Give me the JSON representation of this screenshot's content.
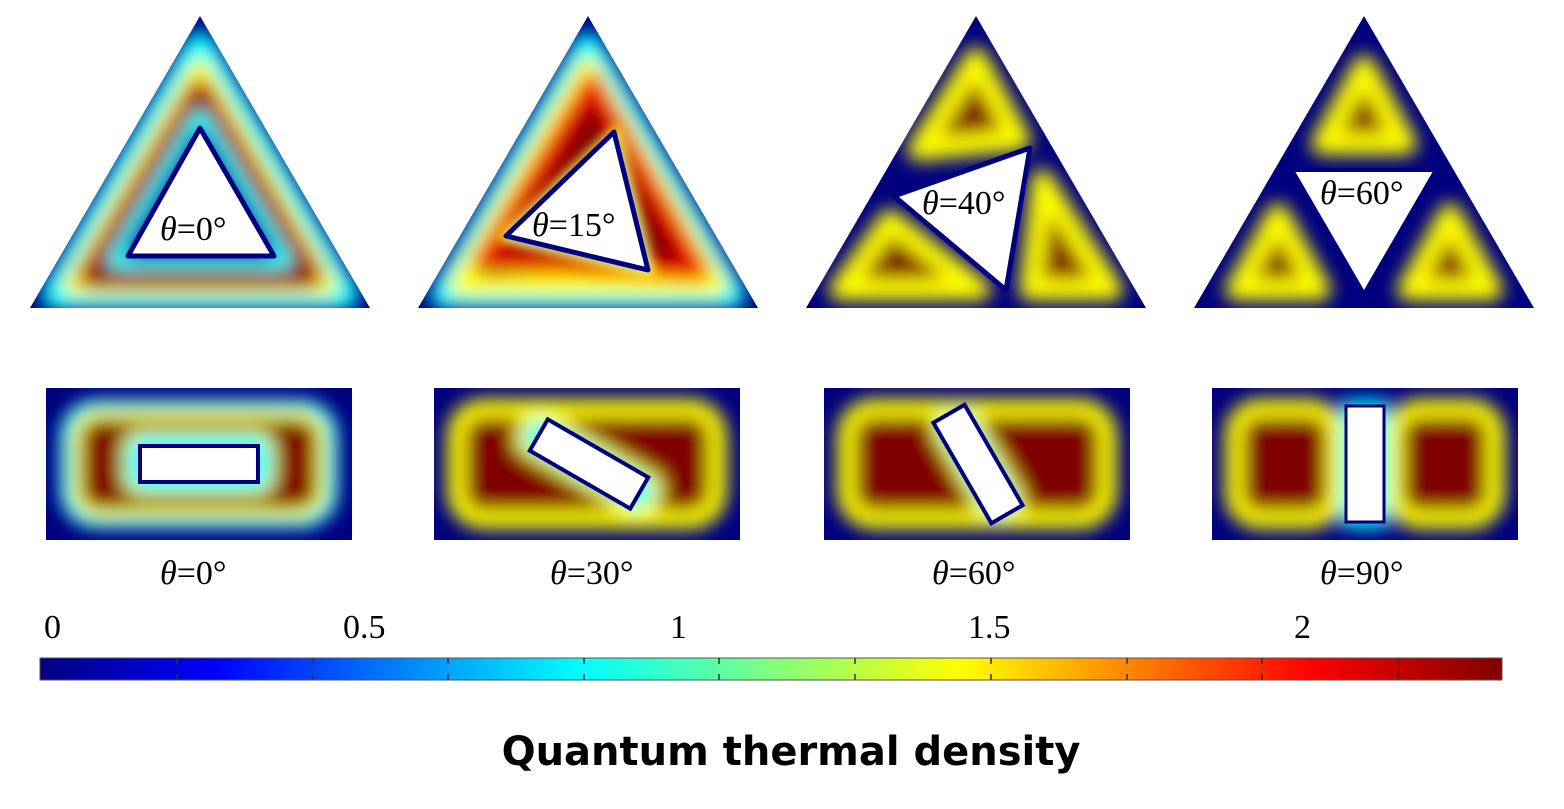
{
  "title": "Quantum thermal density",
  "colorbar": {
    "tick_labels": [
      "0",
      "0.5",
      "1",
      "1.5",
      "2"
    ],
    "colormap": "jet",
    "colors": [
      "#00007f",
      "#0000ff",
      "#00ffff",
      "#ffff00",
      "#ff0000",
      "#7f0000"
    ]
  },
  "triangle_panels": [
    {
      "label_prefix": "θ",
      "label_suffix": "=0°"
    },
    {
      "label_prefix": "θ",
      "label_suffix": "=15°"
    },
    {
      "label_prefix": "θ",
      "label_suffix": "=40°"
    },
    {
      "label_prefix": "θ",
      "label_suffix": "=60°"
    }
  ],
  "rectangle_panels": [
    {
      "label_prefix": "θ",
      "label_suffix": "=0°"
    },
    {
      "label_prefix": "θ",
      "label_suffix": "=30°"
    },
    {
      "label_prefix": "θ",
      "label_suffix": "=60°"
    },
    {
      "label_prefix": "θ",
      "label_suffix": "=90°"
    }
  ]
}
